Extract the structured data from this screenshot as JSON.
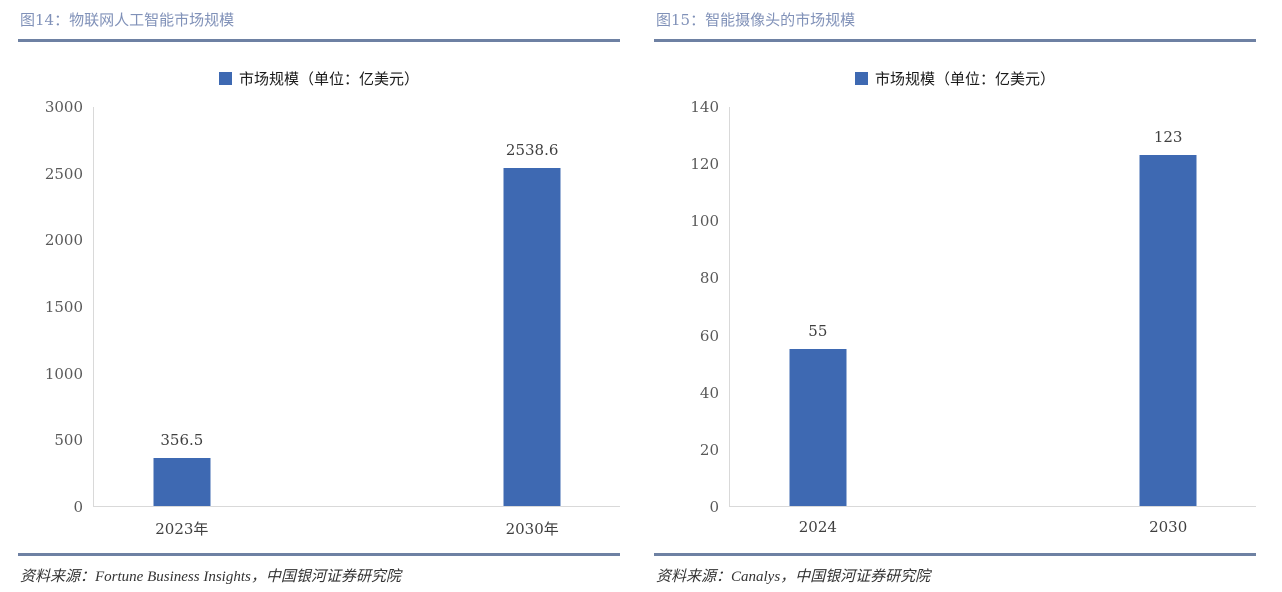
{
  "figures": [
    {
      "title": "图14：物联网人工智能市场规模",
      "source_line": "资料来源：Fortune Business Insights，中国银河证券研究院"
    },
    {
      "title": "图15：智能摄像头的市场规模",
      "source_line": "资料来源：Canalys，中国银河证券研究院"
    }
  ],
  "chart_data": [
    {
      "type": "bar",
      "title": "图14：物联网人工智能市场规模",
      "legend": [
        "市场规模（单位：亿美元）"
      ],
      "legend_position": "top-center",
      "categories": [
        "2023年",
        "2030年"
      ],
      "values": [
        356.5,
        2538.6
      ],
      "data_labels": [
        "356.5",
        "2538.6"
      ],
      "xlabel": "",
      "ylabel": "",
      "ylim": [
        0,
        3000
      ],
      "ytick_step": 500,
      "grid": false,
      "bar_color": "#3E69B2",
      "bar_center_pct": [
        16.7,
        83.3
      ],
      "source": "资料来源：Fortune Business Insights，中国银河证券研究院"
    },
    {
      "type": "bar",
      "title": "图15：智能摄像头的市场规模",
      "legend": [
        "市场规模（单位：亿美元）"
      ],
      "legend_position": "top-center",
      "categories": [
        "2024",
        "2030"
      ],
      "values": [
        55,
        123
      ],
      "data_labels": [
        "55",
        "123"
      ],
      "xlabel": "",
      "ylabel": "",
      "ylim": [
        0,
        140
      ],
      "ytick_step": 20,
      "grid": false,
      "bar_color": "#3E69B2",
      "bar_center_pct": [
        16.7,
        83.3
      ],
      "source": "资料来源：Canalys，中国银河证券研究院"
    }
  ],
  "colors": {
    "bar": "#3E69B2",
    "divider_line": "#6E81A3",
    "figure_title": "#8091B8",
    "axis_line": "#D9D9D9",
    "tick_text": "#595959",
    "label_text": "#3F3F3F"
  }
}
